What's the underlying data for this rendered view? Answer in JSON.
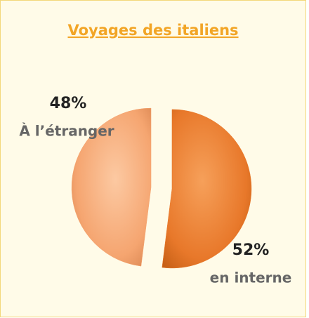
{
  "chart_data": {
    "type": "pie",
    "title": "Voyages des italiens",
    "categories": [
      "À l’étranger",
      "en interne"
    ],
    "values": [
      48,
      52
    ],
    "value_labels": [
      "48%",
      "52%"
    ],
    "colors": [
      "#f5a570",
      "#e8782a"
    ]
  }
}
